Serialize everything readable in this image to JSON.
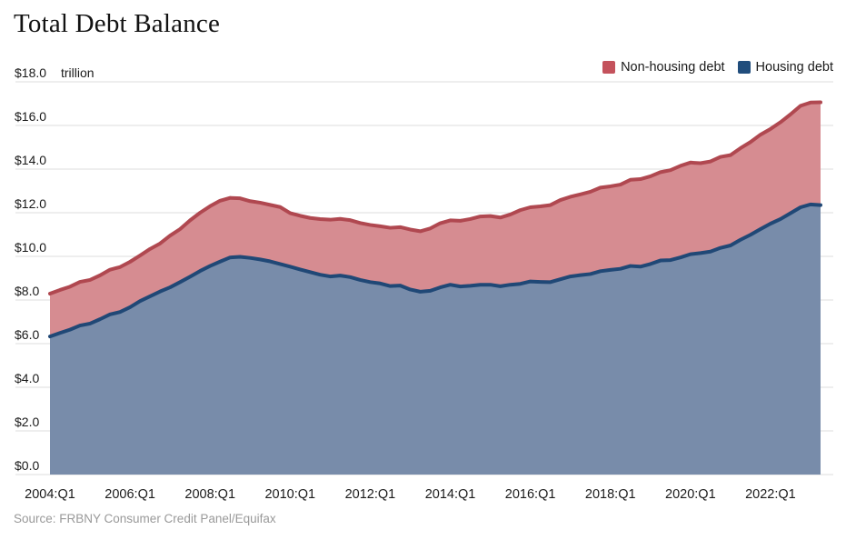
{
  "title": "Total Debt Balance",
  "source": "Source: FRBNY Consumer Credit Panel/Equifax",
  "legend": [
    {
      "label": "Non-housing debt",
      "series": "non_housing"
    },
    {
      "label": "Housing debt",
      "series": "housing"
    }
  ],
  "colors": {
    "housing_fill": "#788caa",
    "housing_line": "#204876",
    "non_housing_fill": "#d68c91",
    "non_housing_line": "#b04850",
    "legend_swatch_non_housing": "#c4525c",
    "legend_swatch_housing": "#204d7c",
    "grid": "#dcdcdc",
    "axis_text": "#1a1a1a",
    "source_text": "#999999"
  },
  "chart_data": {
    "type": "area",
    "stacked": true,
    "title": "Total Debt Balance",
    "unit_label": "trillion",
    "units": "trillions of US dollars",
    "x_start": "2004:Q1",
    "x_end": "2023:Q2",
    "x_frequency": "quarterly",
    "ylim": [
      0,
      18
    ],
    "grid": true,
    "legend_position": "top-right",
    "y_tick_labels": [
      "$0.0",
      "$2.0",
      "$4.0",
      "$6.0",
      "$8.0",
      "$10.0",
      "$12.0",
      "$14.0",
      "$16.0",
      "$18.0"
    ],
    "y_tick_values": [
      0,
      2,
      4,
      6,
      8,
      10,
      12,
      14,
      16,
      18
    ],
    "x_ticks": [
      {
        "label": "2004:Q1",
        "q": 0
      },
      {
        "label": "2006:Q1",
        "q": 8
      },
      {
        "label": "2008:Q1",
        "q": 16
      },
      {
        "label": "2010:Q1",
        "q": 24
      },
      {
        "label": "2012:Q1",
        "q": 32
      },
      {
        "label": "2014:Q1",
        "q": 40
      },
      {
        "label": "2016:Q1",
        "q": 48
      },
      {
        "label": "2018:Q1",
        "q": 56
      },
      {
        "label": "2020:Q1",
        "q": 64
      },
      {
        "label": "2022:Q1",
        "q": 72
      }
    ],
    "series": [
      {
        "name": "Housing debt",
        "values": [
          6.33,
          6.49,
          6.64,
          6.83,
          6.92,
          7.12,
          7.34,
          7.45,
          7.67,
          7.95,
          8.17,
          8.39,
          8.58,
          8.82,
          9.07,
          9.33,
          9.56,
          9.76,
          9.95,
          9.98,
          9.93,
          9.86,
          9.77,
          9.65,
          9.53,
          9.4,
          9.28,
          9.16,
          9.08,
          9.12,
          9.05,
          8.92,
          8.82,
          8.76,
          8.64,
          8.66,
          8.48,
          8.38,
          8.42,
          8.58,
          8.7,
          8.62,
          8.65,
          8.7,
          8.7,
          8.63,
          8.7,
          8.74,
          8.85,
          8.83,
          8.82,
          8.95,
          9.08,
          9.14,
          9.19,
          9.32,
          9.38,
          9.43,
          9.56,
          9.53,
          9.65,
          9.81,
          9.83,
          9.95,
          10.1,
          10.15,
          10.22,
          10.39,
          10.5,
          10.76,
          10.99,
          11.25,
          11.5,
          11.71,
          11.98,
          12.25,
          12.38,
          12.35
        ]
      },
      {
        "name": "Non-housing debt",
        "values": [
          1.96,
          1.97,
          1.97,
          2.0,
          2.0,
          2.01,
          2.05,
          2.06,
          2.08,
          2.09,
          2.17,
          2.2,
          2.37,
          2.43,
          2.58,
          2.67,
          2.74,
          2.79,
          2.73,
          2.68,
          2.6,
          2.6,
          2.59,
          2.61,
          2.45,
          2.46,
          2.48,
          2.55,
          2.6,
          2.6,
          2.61,
          2.61,
          2.62,
          2.62,
          2.67,
          2.68,
          2.75,
          2.77,
          2.86,
          2.94,
          2.95,
          3.01,
          3.06,
          3.13,
          3.15,
          3.15,
          3.22,
          3.38,
          3.4,
          3.46,
          3.53,
          3.63,
          3.65,
          3.7,
          3.77,
          3.83,
          3.83,
          3.86,
          3.95,
          4.01,
          4.02,
          4.05,
          4.12,
          4.2,
          4.2,
          4.12,
          4.13,
          4.17,
          4.14,
          4.2,
          4.25,
          4.33,
          4.34,
          4.44,
          4.53,
          4.65,
          4.67,
          4.71
        ]
      }
    ],
    "notes": "Red band (Non-housing debt) is stacked on top of blue band (Housing debt); top red edge equals total debt balance. Total peaks at 12.68 in 2008:Q3, troughs at 11.15 in 2013:Q2, ends at 17.06 in 2023:Q2."
  }
}
